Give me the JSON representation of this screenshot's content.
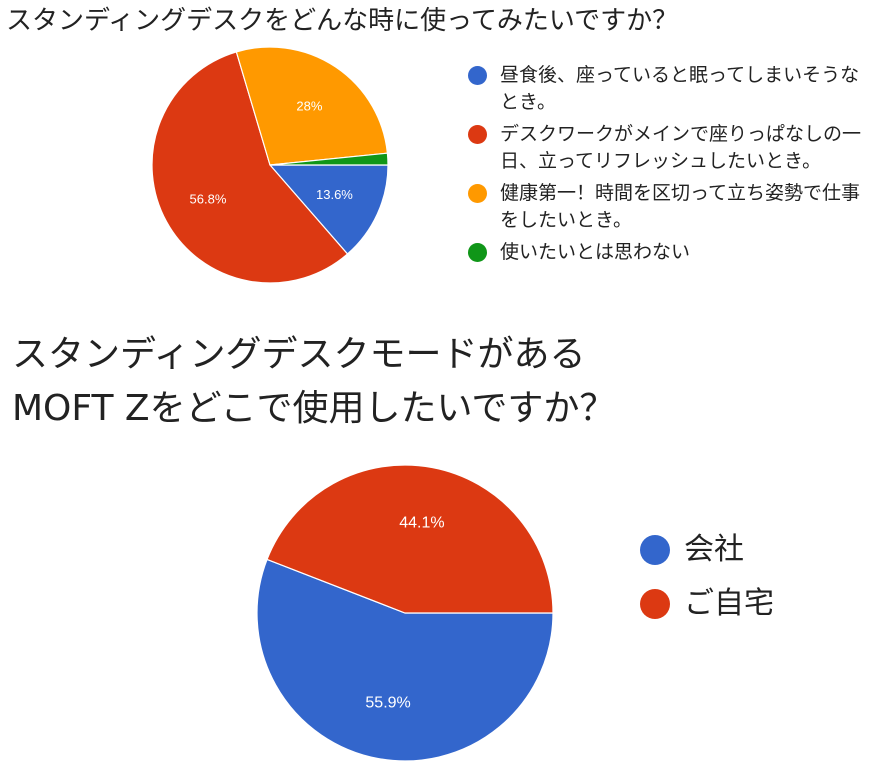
{
  "chart_data": [
    {
      "type": "pie",
      "title": "スタンディングデスクをどんな時に使ってみたいですか？",
      "legend_position": "right",
      "categories": [
        "昼食後、座っていると眠ってしまいそうなとき。",
        "デスクワークがメインで座りっぱなしの一日、立ってリフレッシュしたいとき。",
        "健康第一！時間を区切って立ち姿勢で仕事をしたいとき。",
        "使いたいとは思わない"
      ],
      "values": [
        13.6,
        56.8,
        28,
        1.6
      ],
      "labels": [
        "13.6%",
        "56.8%",
        "28%",
        ""
      ],
      "colors": [
        "#3366cc",
        "#dc3912",
        "#ff9900",
        "#109618"
      ]
    },
    {
      "type": "pie",
      "title": "スタンディングデスクモードがある MOFT Zをどこで使用したいですか？",
      "title_lines": [
        "スタンディングデスクモードがある",
        "MOFT Zをどこで使用したいですか？"
      ],
      "legend_position": "right",
      "categories": [
        "会社",
        "ご自宅"
      ],
      "values": [
        55.9,
        44.1
      ],
      "labels": [
        "55.9%",
        "44.1%"
      ],
      "colors": [
        "#3366cc",
        "#dc3912"
      ]
    }
  ]
}
